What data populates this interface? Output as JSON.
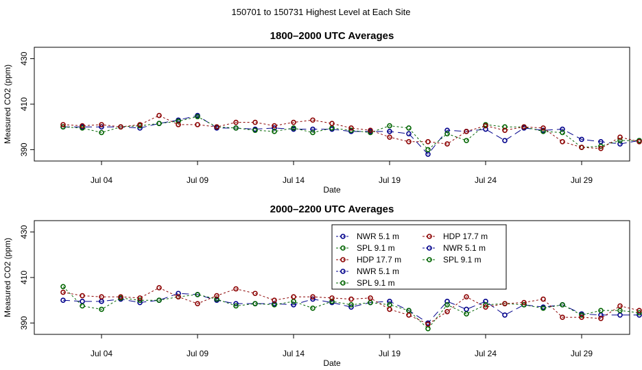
{
  "suptitle": "150701  to  150731 Highest Level at Each Site",
  "colors": {
    "NWR": "#00008b",
    "SPL": "#006400",
    "HDP": "#8b0000"
  },
  "chart_data": [
    {
      "type": "line",
      "title": "1800–2000 UTC Averages",
      "xlabel": "Date",
      "ylabel": "Measured CO2 (ppm)",
      "xlim": [
        0.5,
        31.5
      ],
      "ylim": [
        385,
        435
      ],
      "yticks": [
        390,
        410,
        430
      ],
      "xticks": [
        4,
        9,
        14,
        19,
        24,
        29
      ],
      "xtick_labels": [
        "Jul 04",
        "Jul 09",
        "Jul 14",
        "Jul 19",
        "Jul 24",
        "Jul 29"
      ],
      "x": [
        2,
        3,
        4,
        5,
        6,
        7,
        8,
        9,
        10,
        11,
        12,
        13,
        14,
        15,
        16,
        17,
        18,
        19,
        20,
        21,
        22,
        23,
        24,
        25,
        26,
        27,
        28,
        29,
        30,
        31,
        32
      ],
      "series": [
        {
          "name": "NWR",
          "height": "5.1 m",
          "color": "#00008b",
          "dash": "10,6",
          "values": [
            400,
            400,
            400,
            400,
            399.5,
            401.5,
            403,
            405,
            399.5,
            399.5,
            399,
            399.5,
            399,
            399,
            399,
            398,
            398,
            398,
            397,
            388,
            398.5,
            398,
            399,
            394,
            399.5,
            398.5,
            399,
            394.5,
            393.5,
            392.5,
            394
          ]
        },
        {
          "name": "SPL",
          "height": "9.1 m",
          "color": "#006400",
          "dash": "3,3",
          "values": [
            400,
            399.5,
            397.5,
            400,
            400.5,
            401.5,
            402.5,
            404.5,
            400,
            399.5,
            398.5,
            398,
            399.5,
            397.5,
            399.5,
            398.5,
            397.5,
            400.5,
            399.5,
            390,
            397,
            394,
            401,
            400,
            400,
            398,
            397.5,
            391,
            391.5,
            394,
            394
          ]
        },
        {
          "name": "HDP",
          "height": "17.7 m",
          "color": "#8b0000",
          "dash": "3,3",
          "values": [
            401,
            400.5,
            401,
            400,
            401,
            405,
            401,
            401,
            400,
            402,
            402,
            400.5,
            402,
            403,
            401.5,
            399.5,
            398.5,
            395.5,
            393.5,
            393.5,
            392.5,
            398,
            400.5,
            398.5,
            400,
            399.5,
            393.5,
            391,
            390.5,
            395.5,
            393.5
          ]
        }
      ]
    },
    {
      "type": "line",
      "title": "2000–2200 UTC Averages",
      "xlabel": "Date",
      "ylabel": "Measured CO2 (ppm)",
      "xlim": [
        0.5,
        31.5
      ],
      "ylim": [
        385,
        435
      ],
      "yticks": [
        390,
        410,
        430
      ],
      "xticks": [
        4,
        9,
        14,
        19,
        24,
        29
      ],
      "xtick_labels": [
        "Jul 04",
        "Jul 09",
        "Jul 14",
        "Jul 19",
        "Jul 24",
        "Jul 29"
      ],
      "x": [
        2,
        3,
        4,
        5,
        6,
        7,
        8,
        9,
        10,
        11,
        12,
        13,
        14,
        15,
        16,
        17,
        18,
        19,
        20,
        21,
        22,
        23,
        24,
        25,
        26,
        27,
        28,
        29,
        30,
        31,
        32
      ],
      "series": [
        {
          "name": "NWR",
          "height": "5.1 m",
          "color": "#00008b",
          "dash": "10,6",
          "values": [
            400,
            399.5,
            399.5,
            400.5,
            399,
            400,
            403,
            402.5,
            400,
            398.5,
            398.5,
            398.5,
            398,
            400.5,
            399,
            397,
            399,
            399.5,
            395.5,
            390,
            399.5,
            396,
            399.5,
            393.5,
            398,
            397,
            398,
            394,
            393.5,
            393.5,
            393.5
          ]
        },
        {
          "name": "SPL",
          "height": "9.1 m",
          "color": "#006400",
          "dash": "3,3",
          "values": [
            406,
            397.5,
            396,
            401,
            400,
            400,
            401.5,
            402.5,
            400.5,
            397.5,
            398.5,
            398,
            399.5,
            396.5,
            399.5,
            398,
            399,
            398,
            395.5,
            387.5,
            398,
            394,
            398,
            398.5,
            398,
            396.5,
            398,
            393.5,
            395.5,
            395.5,
            394.5
          ]
        },
        {
          "name": "HDP",
          "height": "17.7 m",
          "color": "#8b0000",
          "dash": "3,3",
          "values": [
            403.5,
            402,
            401.5,
            401.5,
            401,
            405.5,
            401.5,
            398.5,
            402,
            405,
            403,
            400,
            401.5,
            401.5,
            401,
            400.5,
            401,
            396,
            393.5,
            389.5,
            395,
            401.5,
            397,
            398.5,
            399,
            400.5,
            392.5,
            392.5,
            392,
            397.5,
            395.5
          ]
        }
      ],
      "legend": {
        "placement": "top-right-inside",
        "entries": [
          {
            "label": "NWR   5.1 m",
            "color": "#00008b"
          },
          {
            "label": "SPL   9.1 m",
            "color": "#006400"
          },
          {
            "label": "HDP   17.7 m",
            "color": "#8b0000"
          },
          {
            "label": "NWR   5.1 m",
            "color": "#00008b"
          },
          {
            "label": "SPL   9.1 m",
            "color": "#006400"
          },
          {
            "label": "HDP   17.7 m",
            "color": "#8b0000"
          },
          {
            "label": "NWR   5.1 m",
            "color": "#00008b"
          },
          {
            "label": "SPL   9.1 m",
            "color": "#006400"
          }
        ]
      }
    }
  ]
}
